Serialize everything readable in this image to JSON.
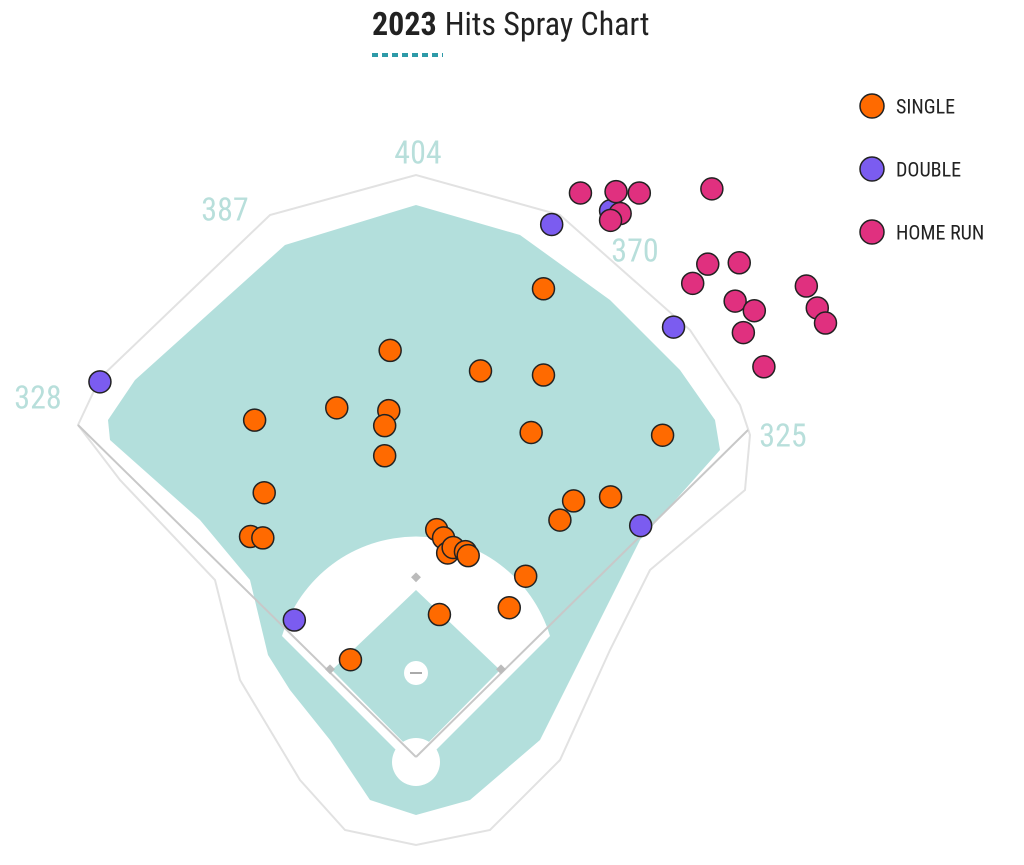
{
  "chart_data": {
    "type": "scatter",
    "title_year": "2023",
    "title": "Hits Spray Chart",
    "xlim": [
      -304,
      444
    ],
    "ylim": [
      -79,
      553
    ],
    "fence_distances": [
      404,
      387,
      370,
      328,
      325
    ],
    "series": [
      {
        "name": "SINGLE",
        "color": "#ff6a00",
        "x": [
          93,
          -19,
          47,
          93,
          -58,
          -20,
          -118,
          -23,
          84,
          180,
          -23,
          -111,
          142,
          115,
          105,
          -121,
          -112,
          15,
          20,
          23,
          27,
          36,
          38,
          80,
          68,
          17,
          -48
        ],
        "values": [
          342,
          297,
          282,
          279,
          255,
          253,
          246,
          242,
          237,
          235,
          220,
          193,
          190,
          187,
          173,
          161,
          160,
          166,
          160,
          149,
          153,
          150,
          147,
          132,
          109,
          104,
          71
        ]
      },
      {
        "name": "DOUBLE",
        "color": "#7b5cf0",
        "x": [
          -231,
          99,
          142,
          188,
          164,
          -89
        ],
        "values": [
          274,
          389,
          399,
          314,
          169,
          100
        ]
      },
      {
        "name": "HOME RUN",
        "color": "#e0307f",
        "x": [
          120,
          146,
          163,
          216,
          149,
          142,
          213,
          236,
          202,
          233,
          247,
          239,
          285,
          293,
          299,
          254
        ],
        "values": [
          412,
          413,
          412,
          415,
          397,
          392,
          360,
          361,
          346,
          333,
          326,
          310,
          344,
          328,
          317,
          285
        ]
      }
    ]
  }
}
